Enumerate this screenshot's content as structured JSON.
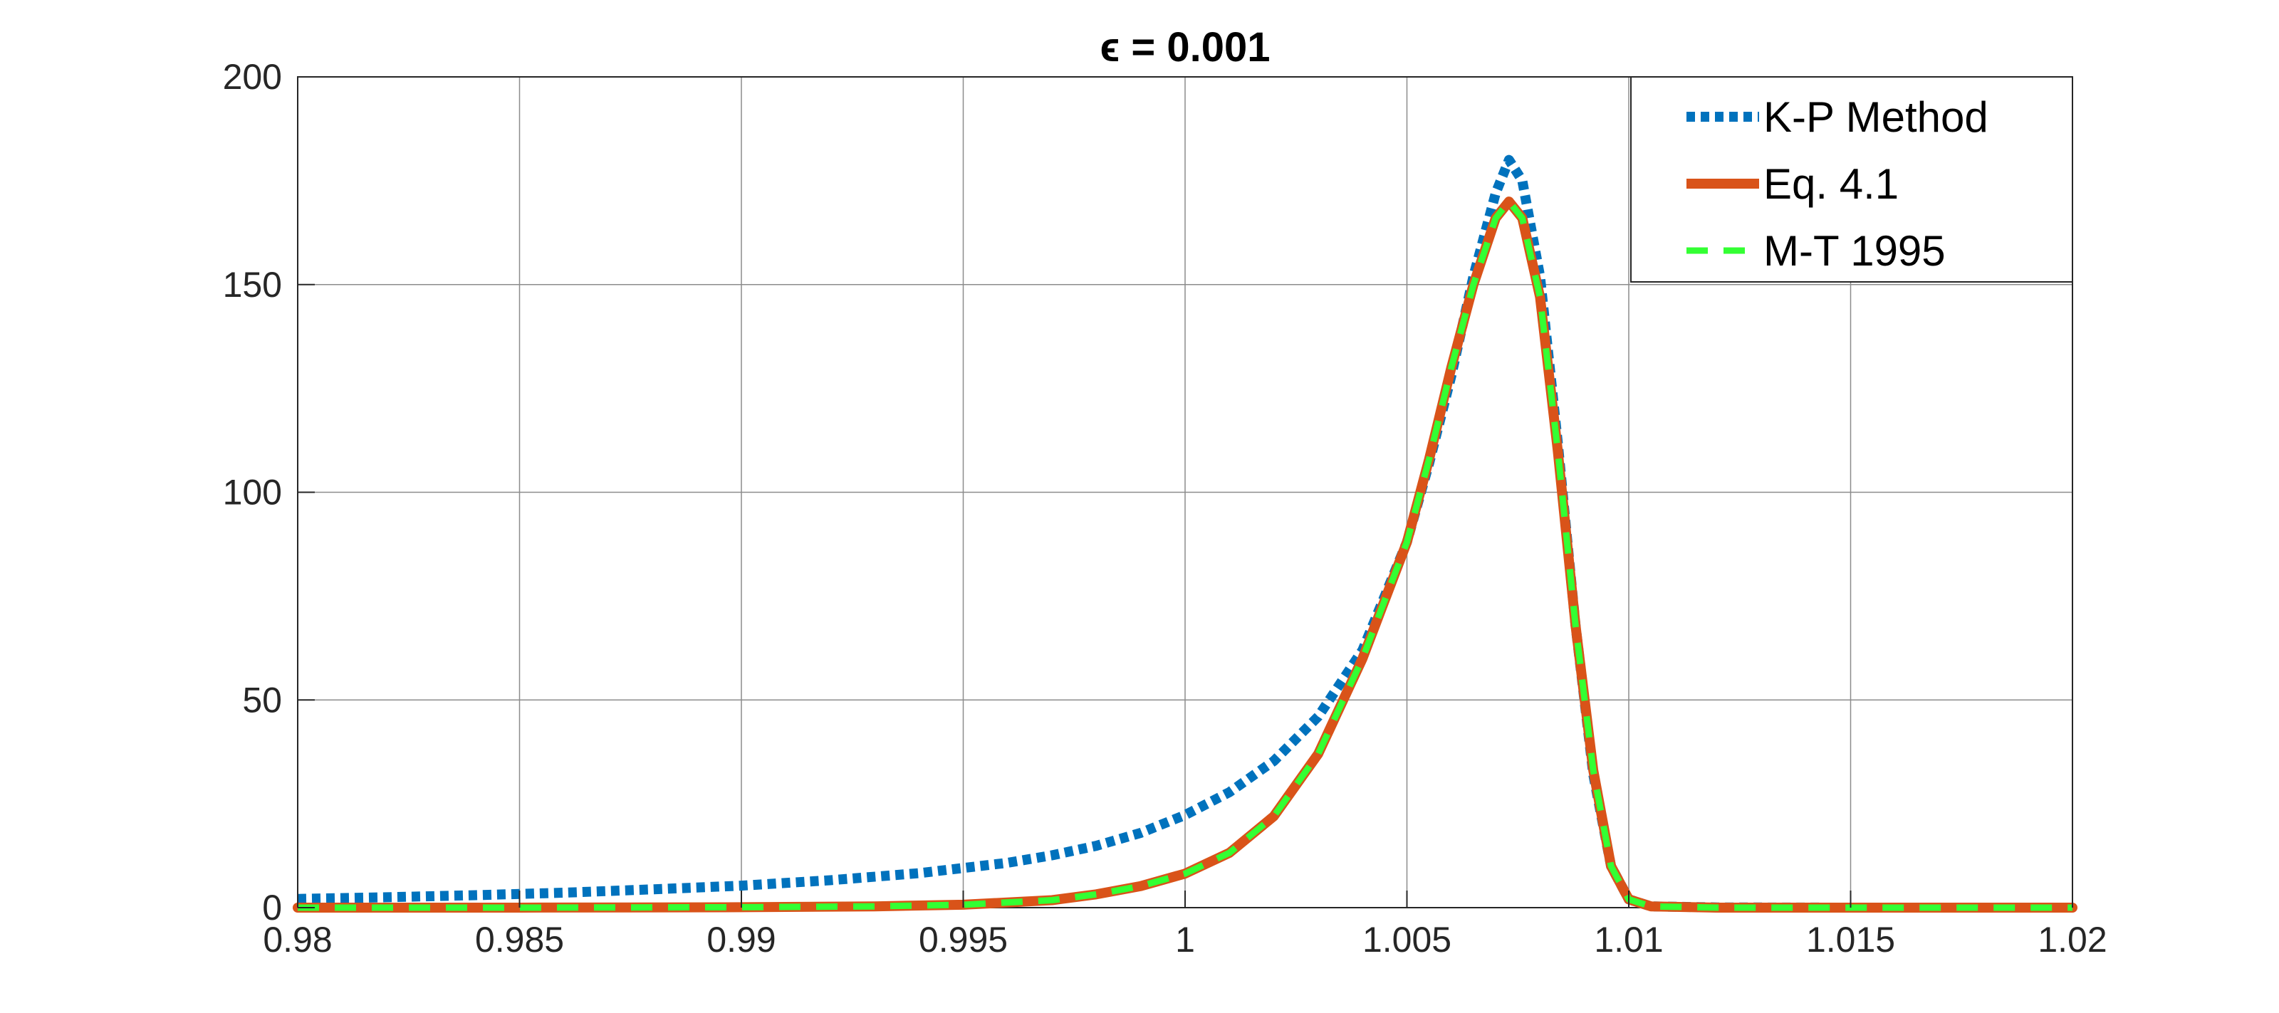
{
  "chart_data": {
    "type": "line",
    "title": "ϵ = 0.001",
    "xlabel": "",
    "ylabel": "",
    "xlim": [
      0.98,
      1.02
    ],
    "ylim": [
      0,
      200
    ],
    "xticks": [
      0.98,
      0.985,
      0.99,
      0.995,
      1,
      1.005,
      1.01,
      1.015,
      1.02
    ],
    "xtick_labels": [
      "0.98",
      "0.985",
      "0.99",
      "0.995",
      "1",
      "1.005",
      "1.01",
      "1.015",
      "1.02"
    ],
    "yticks": [
      0,
      50,
      100,
      150,
      200
    ],
    "ytick_labels": [
      "0",
      "50",
      "100",
      "150",
      "200"
    ],
    "grid": true,
    "legend_position": "top-right",
    "series": [
      {
        "name": "K-P Method",
        "color": "#0072BD",
        "style": "dotted",
        "x": [
          0.98,
          0.982,
          0.984,
          0.986,
          0.988,
          0.99,
          0.992,
          0.994,
          0.996,
          0.997,
          0.998,
          0.999,
          1.0,
          1.001,
          1.002,
          1.003,
          1.004,
          1.005,
          1.0055,
          1.006,
          1.0065,
          1.007,
          1.0073,
          1.0076,
          1.008,
          1.0084,
          1.0088,
          1.0092,
          1.0096,
          1.01,
          1.0105,
          1.012,
          1.015,
          1.02
        ],
        "y": [
          2.1,
          2.5,
          3.0,
          3.6,
          4.4,
          5.3,
          6.6,
          8.3,
          10.8,
          12.6,
          14.9,
          18.0,
          22.3,
          27.8,
          35.3,
          46.0,
          62.0,
          88.0,
          107.0,
          128.0,
          152.0,
          172.0,
          180.0,
          175.0,
          152.0,
          112.0,
          68.0,
          32.0,
          10.0,
          2.0,
          0.3,
          0.05,
          0.0,
          0.0
        ]
      },
      {
        "name": "Eq. 4.1",
        "color": "#D95319",
        "style": "solid",
        "x": [
          0.98,
          0.985,
          0.99,
          0.993,
          0.995,
          0.997,
          0.998,
          0.999,
          1.0,
          1.001,
          1.002,
          1.003,
          1.004,
          1.005,
          1.0055,
          1.006,
          1.0065,
          1.007,
          1.0073,
          1.0076,
          1.008,
          1.0084,
          1.0088,
          1.0092,
          1.0096,
          1.01,
          1.0105,
          1.012,
          1.015,
          1.02
        ],
        "y": [
          0.0,
          0.0,
          0.1,
          0.3,
          0.7,
          1.8,
          3.2,
          5.2,
          8.2,
          13.2,
          22.0,
          37.0,
          60.0,
          88.0,
          108.0,
          130.0,
          150.0,
          166.0,
          170.0,
          166.0,
          147.0,
          110.0,
          68.0,
          33.0,
          10.0,
          2.0,
          0.3,
          0.0,
          0.0,
          0.0
        ]
      },
      {
        "name": "M-T 1995",
        "color": "#33FF33",
        "style": "dashed",
        "x": [
          0.98,
          0.985,
          0.99,
          0.993,
          0.995,
          0.997,
          0.998,
          0.999,
          1.0,
          1.001,
          1.002,
          1.003,
          1.004,
          1.005,
          1.0055,
          1.006,
          1.0065,
          1.007,
          1.0073,
          1.0076,
          1.008,
          1.0084,
          1.0088,
          1.0092,
          1.0096,
          1.01,
          1.0105,
          1.012,
          1.015,
          1.02
        ],
        "y": [
          0.0,
          0.0,
          0.1,
          0.3,
          0.7,
          1.8,
          3.2,
          5.2,
          8.2,
          13.2,
          22.0,
          37.0,
          60.0,
          88.0,
          108.0,
          130.0,
          150.0,
          166.0,
          170.0,
          166.0,
          147.0,
          110.0,
          68.0,
          33.0,
          10.0,
          2.0,
          0.3,
          0.0,
          0.0,
          0.0
        ]
      }
    ]
  }
}
